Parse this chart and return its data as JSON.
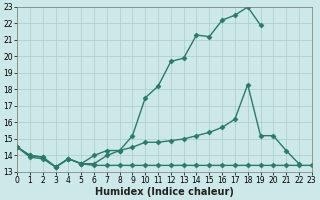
{
  "xlabel": "Humidex (Indice chaleur)",
  "x": [
    0,
    1,
    2,
    3,
    4,
    5,
    6,
    7,
    8,
    9,
    10,
    11,
    12,
    13,
    14,
    15,
    16,
    17,
    18,
    19,
    20,
    21,
    22,
    23
  ],
  "line1": [
    14.5,
    14.0,
    13.9,
    13.3,
    13.8,
    13.5,
    13.5,
    14.0,
    14.3,
    15.2,
    17.5,
    18.2,
    19.7,
    19.9,
    21.3,
    21.2,
    22.2,
    22.5,
    23.0,
    21.9,
    null,
    null,
    null,
    null
  ],
  "line2": [
    14.5,
    14.0,
    13.9,
    13.3,
    13.8,
    13.5,
    14.0,
    14.3,
    14.3,
    14.5,
    14.8,
    14.8,
    14.9,
    15.0,
    15.2,
    15.4,
    15.7,
    16.2,
    18.3,
    15.2,
    15.2,
    14.3,
    13.5,
    null
  ],
  "line3": [
    14.5,
    13.9,
    13.8,
    13.3,
    13.8,
    13.5,
    13.4,
    13.4,
    13.4,
    13.4,
    13.4,
    13.4,
    13.4,
    13.4,
    13.4,
    13.4,
    13.4,
    13.4,
    13.4,
    13.4,
    13.4,
    13.4,
    13.4,
    13.4
  ],
  "line_color": "#2a7a6a",
  "bg_color": "#cce8e8",
  "grid_color": "#aacccc",
  "ylim_min": 13,
  "ylim_max": 23,
  "xlim_min": 0,
  "xlim_max": 23,
  "yticks": [
    13,
    14,
    15,
    16,
    17,
    18,
    19,
    20,
    21,
    22,
    23
  ],
  "xticks": [
    0,
    1,
    2,
    3,
    4,
    5,
    6,
    7,
    8,
    9,
    10,
    11,
    12,
    13,
    14,
    15,
    16,
    17,
    18,
    19,
    20,
    21,
    22,
    23
  ],
  "marker": "D",
  "markersize": 2.5,
  "linewidth": 1.0,
  "fontsize_label": 7,
  "fontsize_tick": 5.5
}
